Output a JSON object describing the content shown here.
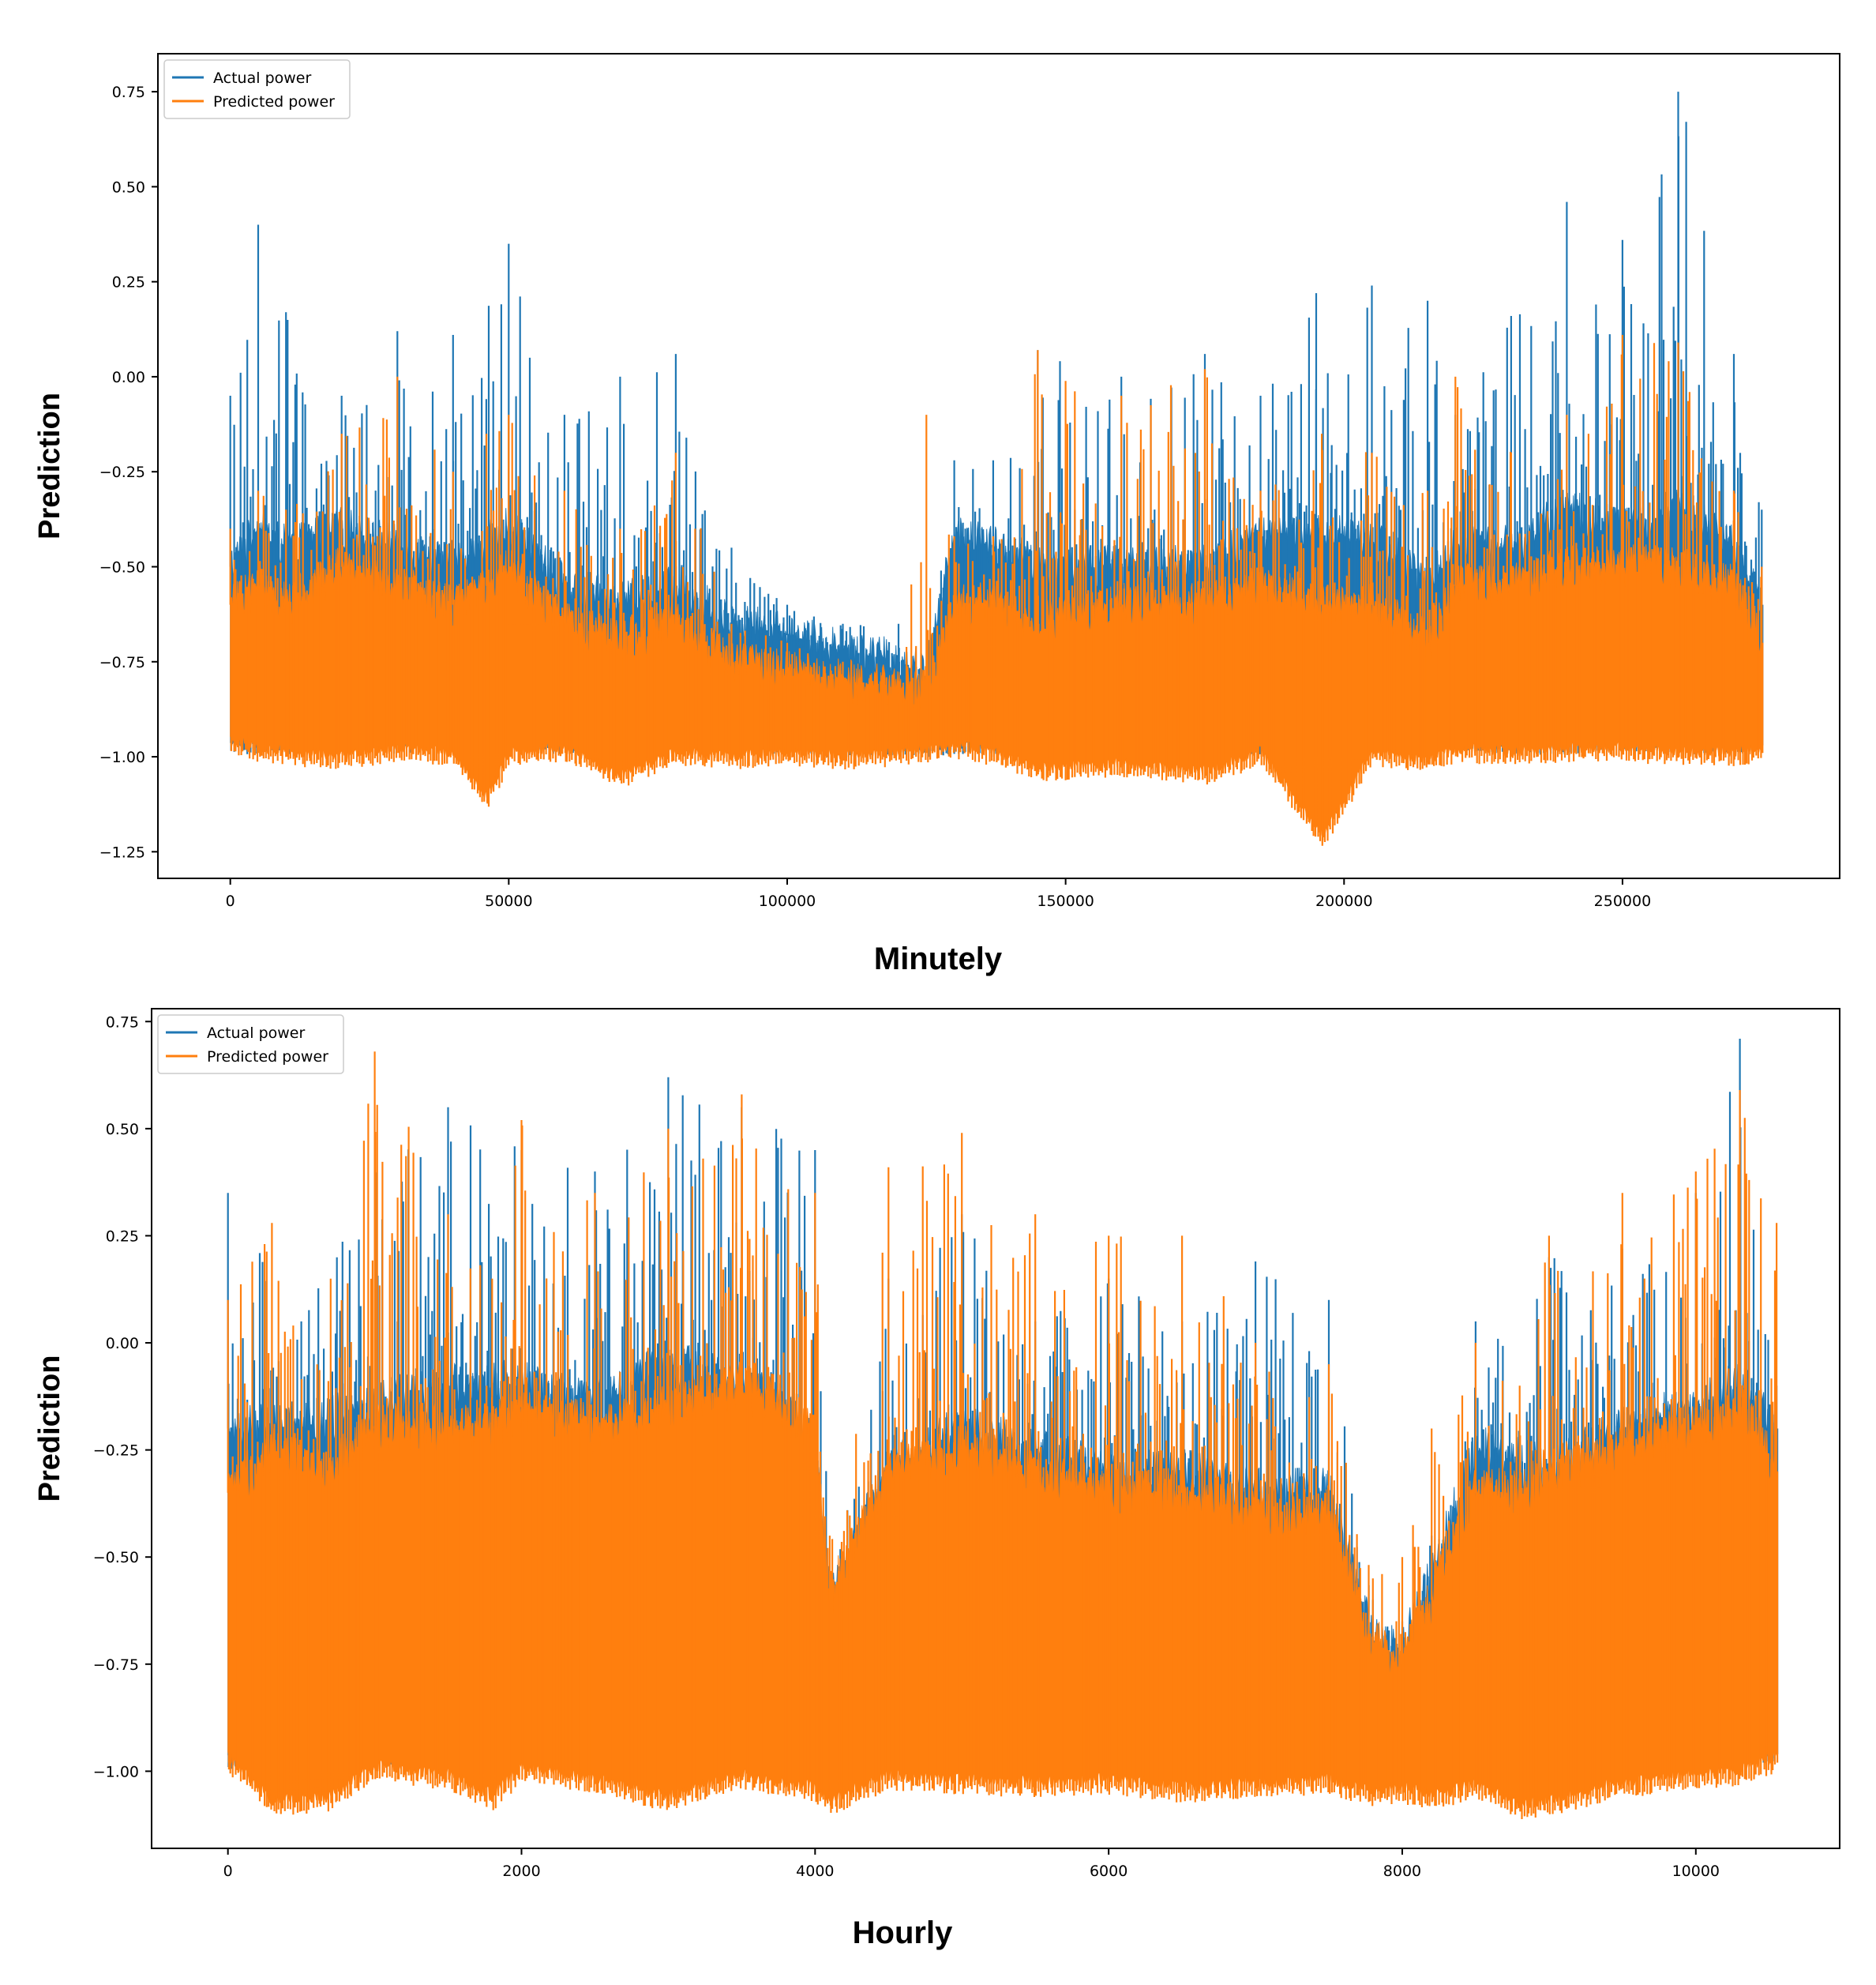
{
  "chart_data": [
    {
      "type": "line",
      "title": "",
      "xlabel": "",
      "ylabel": "Prediction",
      "caption": "Minutely",
      "xlim": [
        -13000,
        289000
      ],
      "ylim": [
        -1.32,
        0.85
      ],
      "xticks": [
        0,
        50000,
        100000,
        150000,
        200000,
        250000
      ],
      "xtick_labels": [
        "0",
        "50000",
        "100000",
        "150000",
        "200000",
        "250000"
      ],
      "yticks": [
        0.75,
        0.5,
        0.25,
        0.0,
        -0.25,
        -0.5,
        -0.75,
        -1.0,
        -1.25
      ],
      "ytick_labels": [
        "0.75",
        "0.50",
        "0.25",
        "0.00",
        "−0.25",
        "−0.50",
        "−0.75",
        "−1.00",
        "−1.25"
      ],
      "legend_position": "top-left",
      "series": [
        {
          "name": "Actual power",
          "color": "#1f77b4",
          "x": [
            0,
            5000,
            10000,
            20000,
            30000,
            40000,
            50000,
            60000,
            70000,
            80000,
            90000,
            100000,
            110000,
            120000,
            125000,
            130000,
            137000,
            145000,
            160000,
            175000,
            185000,
            195000,
            205000,
            215000,
            220000,
            230000,
            240000,
            250000,
            260000,
            270000,
            275000
          ],
          "min": [
            -0.97,
            -0.97,
            -0.97,
            -0.96,
            -0.97,
            -0.96,
            -0.96,
            -0.97,
            -0.96,
            -0.96,
            -0.96,
            -0.97,
            -0.98,
            -0.97,
            -0.98,
            -0.97,
            -0.97,
            -0.97,
            -0.97,
            -0.97,
            -0.97,
            -0.97,
            -0.96,
            -0.96,
            -0.96,
            -0.97,
            -0.97,
            -0.96,
            -0.97,
            -0.97,
            -0.97
          ],
          "max": [
            -0.05,
            0.4,
            0.17,
            -0.05,
            0.12,
            0.11,
            0.35,
            -0.1,
            0.0,
            0.06,
            -0.45,
            -0.6,
            -0.65,
            -0.65,
            -0.8,
            -0.22,
            -0.22,
            0.07,
            0.0,
            0.06,
            -0.05,
            0.22,
            0.24,
            0.2,
            -0.1,
            0.16,
            0.46,
            0.36,
            0.75,
            0.06,
            -0.35
          ],
          "band_top": [
            -0.5,
            -0.4,
            -0.45,
            -0.4,
            -0.45,
            -0.5,
            -0.4,
            -0.55,
            -0.6,
            -0.55,
            -0.65,
            -0.68,
            -0.72,
            -0.75,
            -0.78,
            -0.42,
            -0.45,
            -0.5,
            -0.5,
            -0.5,
            -0.42,
            -0.42,
            -0.42,
            -0.55,
            -0.45,
            -0.45,
            -0.35,
            -0.4,
            -0.35,
            -0.45,
            -0.6
          ]
        },
        {
          "name": "Predicted power",
          "color": "#ff7f0e",
          "x": [
            0,
            5000,
            10000,
            20000,
            30000,
            40000,
            46000,
            50000,
            60000,
            70000,
            80000,
            90000,
            100000,
            110000,
            120000,
            125000,
            130000,
            137000,
            145000,
            160000,
            175000,
            185000,
            196000,
            205000,
            215000,
            220000,
            230000,
            240000,
            250000,
            260000,
            270000,
            275000
          ],
          "min": [
            -0.97,
            -0.99,
            -1.0,
            -1.01,
            -0.99,
            -1.0,
            -1.12,
            -1.0,
            -0.99,
            -1.06,
            -1.0,
            -1.01,
            -1.0,
            -1.01,
            -1.0,
            -0.99,
            -0.98,
            -1.0,
            -1.04,
            -1.03,
            -1.05,
            -1.0,
            -1.22,
            -1.0,
            -1.02,
            -0.99,
            -1.0,
            -0.99,
            -0.99,
            -1.0,
            -1.0,
            -0.99
          ],
          "max": [
            -0.4,
            -0.3,
            -0.35,
            -0.15,
            0.0,
            -0.25,
            -0.15,
            -0.1,
            -0.3,
            -0.4,
            -0.2,
            -0.65,
            -0.7,
            -0.75,
            -0.8,
            -0.1,
            -0.42,
            -0.42,
            0.07,
            -0.05,
            0.02,
            -0.3,
            -0.15,
            -0.2,
            -0.3,
            0.0,
            -0.2,
            -0.1,
            0.11,
            0.09,
            -0.3,
            -0.5
          ],
          "band_top": [
            -0.6,
            -0.55,
            -0.6,
            -0.5,
            -0.55,
            -0.6,
            -0.55,
            -0.5,
            -0.65,
            -0.7,
            -0.65,
            -0.75,
            -0.78,
            -0.8,
            -0.82,
            -0.82,
            -0.6,
            -0.6,
            -0.65,
            -0.6,
            -0.6,
            -0.55,
            -0.6,
            -0.6,
            -0.7,
            -0.55,
            -0.55,
            -0.5,
            -0.5,
            -0.5,
            -0.55,
            -0.7
          ]
        }
      ]
    },
    {
      "type": "line",
      "title": "",
      "xlabel": "",
      "ylabel": "Prediction",
      "caption": "Hourly",
      "xlim": [
        -520,
        10980
      ],
      "ylim": [
        -1.18,
        0.78
      ],
      "xticks": [
        0,
        2000,
        4000,
        6000,
        8000,
        10000
      ],
      "xtick_labels": [
        "0",
        "2000",
        "4000",
        "6000",
        "8000",
        "10000"
      ],
      "yticks": [
        0.75,
        0.5,
        0.25,
        0.0,
        -0.25,
        -0.5,
        -0.75,
        -1.0
      ],
      "ytick_labels": [
        "0.75",
        "0.50",
        "0.25",
        "0.00",
        "−0.25",
        "−0.50",
        "−0.75",
        "−1.00"
      ],
      "legend_position": "top-left",
      "series": [
        {
          "name": "Actual power",
          "color": "#1f77b4",
          "x": [
            0,
            500,
            1000,
            1500,
            2000,
            2500,
            3000,
            3500,
            4000,
            4100,
            4500,
            5000,
            5500,
            6000,
            6500,
            7000,
            7500,
            7800,
            8000,
            8200,
            8500,
            9000,
            9500,
            10000,
            10300,
            10550
          ],
          "min": [
            -0.97,
            -0.96,
            -0.96,
            -0.96,
            -0.96,
            -0.96,
            -0.96,
            -0.96,
            -0.95,
            -0.95,
            -0.95,
            -0.96,
            -0.96,
            -0.96,
            -0.96,
            -0.96,
            -0.96,
            -0.96,
            -0.97,
            -0.97,
            -0.96,
            -0.96,
            -0.96,
            -0.96,
            -0.96,
            -0.96
          ],
          "max": [
            0.35,
            0.05,
            0.42,
            0.55,
            0.45,
            0.4,
            0.62,
            0.55,
            0.45,
            -0.55,
            0.15,
            0.3,
            0.05,
            0.15,
            0.05,
            0.19,
            0.1,
            -0.6,
            -0.65,
            -0.45,
            0.05,
            0.2,
            0.22,
            0.35,
            0.71,
            -0.1
          ],
          "band_top": [
            -0.2,
            -0.2,
            -0.15,
            -0.1,
            -0.1,
            -0.15,
            -0.05,
            -0.1,
            -0.2,
            -0.6,
            -0.3,
            -0.2,
            -0.25,
            -0.3,
            -0.3,
            -0.35,
            -0.35,
            -0.7,
            -0.72,
            -0.55,
            -0.25,
            -0.3,
            -0.2,
            -0.15,
            -0.1,
            -0.2
          ]
        },
        {
          "name": "Predicted power",
          "color": "#ff7f0e",
          "x": [
            0,
            300,
            700,
            1000,
            1500,
            1800,
            2000,
            2500,
            3000,
            3500,
            4000,
            4100,
            4500,
            5000,
            5500,
            6000,
            6500,
            7000,
            7500,
            7800,
            8000,
            8200,
            8500,
            8800,
            9000,
            9500,
            10000,
            10300,
            10550
          ],
          "min": [
            -0.98,
            -1.08,
            -1.07,
            -1.0,
            -1.02,
            -1.07,
            -1.0,
            -1.03,
            -1.07,
            -1.02,
            -1.05,
            -1.08,
            -1.02,
            -1.03,
            -1.04,
            -1.03,
            -1.05,
            -1.04,
            -1.03,
            -1.06,
            -1.05,
            -1.07,
            -1.04,
            -1.09,
            -1.08,
            -1.04,
            -1.02,
            -1.01,
            -0.98
          ],
          "max": [
            0.1,
            0.28,
            0.15,
            0.68,
            0.3,
            0.15,
            0.52,
            0.35,
            0.5,
            0.58,
            0.35,
            -0.45,
            0.41,
            0.49,
            0.3,
            0.25,
            0.25,
            0.0,
            -0.05,
            -0.55,
            -0.5,
            -0.2,
            0.0,
            -0.1,
            0.25,
            0.35,
            0.4,
            0.59,
            0.28
          ],
          "band_top": [
            -0.35,
            -0.25,
            -0.3,
            -0.2,
            -0.2,
            -0.2,
            -0.15,
            -0.2,
            -0.15,
            -0.1,
            -0.2,
            -0.6,
            -0.3,
            -0.25,
            -0.3,
            -0.35,
            -0.35,
            -0.4,
            -0.4,
            -0.7,
            -0.75,
            -0.6,
            -0.35,
            -0.35,
            -0.3,
            -0.25,
            -0.2,
            -0.15,
            -0.3
          ]
        }
      ]
    }
  ]
}
